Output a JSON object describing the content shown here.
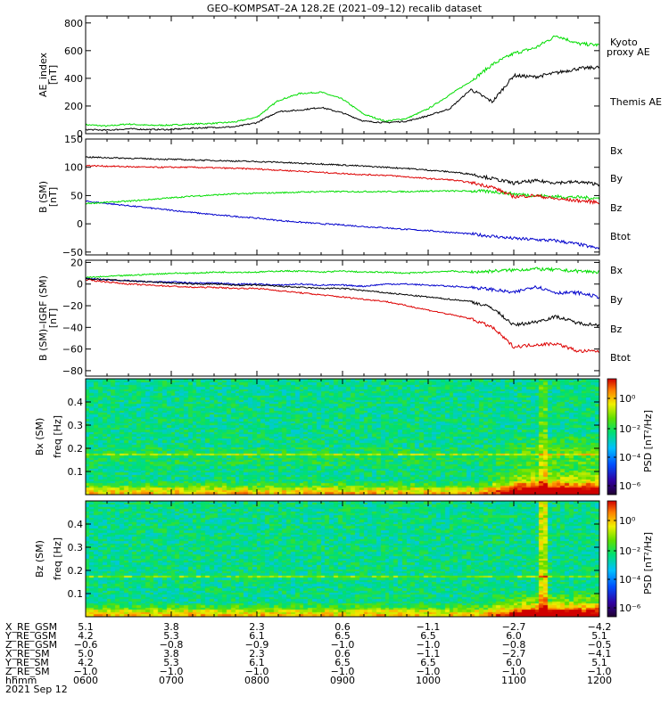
{
  "title": "GEO–KOMPSAT–2A 128.2E (2021–09–12) recalib dataset",
  "chart_data": [
    {
      "type": "line",
      "panel": "ae",
      "ylabel": [
        "AE_index",
        "[nT]"
      ],
      "ylim": [
        0,
        850
      ],
      "yticks": [
        0,
        200,
        400,
        600,
        800
      ],
      "x_hours": [
        6.0,
        6.25,
        6.5,
        6.75,
        7.0,
        7.25,
        7.5,
        7.75,
        8.0,
        8.25,
        8.5,
        8.75,
        9.0,
        9.25,
        9.5,
        9.75,
        10.0,
        10.25,
        10.5,
        10.75,
        11.0,
        11.25,
        11.5,
        11.75,
        12.0
      ],
      "series": [
        {
          "name": "Kyoto proxy AE",
          "color": "#00dd00",
          "values": [
            65,
            55,
            70,
            60,
            62,
            70,
            75,
            85,
            120,
            240,
            290,
            300,
            250,
            140,
            90,
            110,
            180,
            280,
            380,
            500,
            580,
            620,
            710,
            650,
            640
          ]
        },
        {
          "name": "Themis AE",
          "color": "#000000",
          "values": [
            30,
            25,
            35,
            30,
            30,
            40,
            45,
            50,
            80,
            160,
            170,
            190,
            150,
            90,
            80,
            90,
            130,
            180,
            320,
            230,
            420,
            410,
            440,
            470,
            480
          ]
        }
      ]
    },
    {
      "type": "line",
      "panel": "b_sm",
      "ylabel": [
        "B (SM)",
        "[nT]"
      ],
      "ylim": [
        -55,
        150
      ],
      "yticks": [
        -50,
        0,
        50,
        100,
        150
      ],
      "x_hours": [
        6.0,
        6.25,
        6.5,
        6.75,
        7.0,
        7.25,
        7.5,
        7.75,
        8.0,
        8.25,
        8.5,
        8.75,
        9.0,
        9.25,
        9.5,
        9.75,
        10.0,
        10.25,
        10.5,
        10.75,
        11.0,
        11.25,
        11.5,
        11.75,
        12.0
      ],
      "series": [
        {
          "name": "Bx",
          "color": "#0000cc",
          "values": [
            40,
            36,
            32,
            28,
            24,
            20,
            16,
            13,
            10,
            6,
            3,
            0,
            -2,
            -5,
            -7,
            -10,
            -12,
            -15,
            -18,
            -22,
            -26,
            -28,
            -30,
            -36,
            -44
          ]
        },
        {
          "name": "By",
          "color": "#00dd00",
          "values": [
            36,
            38,
            40,
            43,
            46,
            49,
            51,
            53,
            54,
            55,
            56,
            57,
            57,
            57,
            57,
            57,
            58,
            58,
            58,
            57,
            53,
            50,
            48,
            47,
            45
          ]
        },
        {
          "name": "Bz",
          "color": "#dd0000",
          "values": [
            103,
            102,
            101,
            100,
            100,
            100,
            99,
            98,
            97,
            95,
            93,
            91,
            89,
            87,
            86,
            83,
            80,
            78,
            73,
            65,
            48,
            50,
            44,
            41,
            38
          ]
        },
        {
          "name": "Btot",
          "color": "#000000",
          "values": [
            118,
            117,
            116,
            115,
            114,
            113,
            112,
            111,
            110,
            109,
            107,
            106,
            104,
            102,
            100,
            98,
            95,
            92,
            88,
            80,
            72,
            76,
            73,
            74,
            70
          ]
        }
      ]
    },
    {
      "type": "line",
      "panel": "b_minus_igrf",
      "ylabel": [
        "B (SM)–IGRF (SM)",
        "[nT]"
      ],
      "ylim": [
        -85,
        22
      ],
      "yticks": [
        -80,
        -60,
        -40,
        -20,
        0,
        20
      ],
      "x_hours": [
        6.0,
        6.25,
        6.5,
        6.75,
        7.0,
        7.25,
        7.5,
        7.75,
        8.0,
        8.25,
        8.5,
        8.75,
        9.0,
        9.25,
        9.5,
        9.75,
        10.0,
        10.25,
        10.5,
        10.75,
        11.0,
        11.25,
        11.5,
        11.75,
        12.0
      ],
      "series": [
        {
          "name": "Bx",
          "color": "#0000cc",
          "values": [
            5,
            4,
            3,
            2,
            2,
            1,
            1,
            0,
            0,
            -1,
            0,
            -1,
            -1,
            -2,
            0,
            0,
            -1,
            -2,
            -3,
            -5,
            -8,
            -2,
            -8,
            -8,
            -12
          ]
        },
        {
          "name": "By",
          "color": "#00dd00",
          "values": [
            6,
            7,
            8,
            9,
            10,
            10,
            11,
            11,
            11,
            12,
            12,
            11,
            12,
            11,
            11,
            10,
            11,
            12,
            11,
            12,
            13,
            14,
            13,
            12,
            11
          ]
        },
        {
          "name": "Bz",
          "color": "#dd0000",
          "values": [
            4,
            2,
            0,
            -1,
            -2,
            -3,
            -3,
            -4,
            -4,
            -6,
            -8,
            -10,
            -12,
            -14,
            -16,
            -20,
            -24,
            -28,
            -32,
            -40,
            -58,
            -56,
            -55,
            -62,
            -62
          ]
        },
        {
          "name": "Btot",
          "color": "#000000",
          "values": [
            5,
            4,
            3,
            2,
            1,
            0,
            0,
            -1,
            -1,
            -2,
            -3,
            -4,
            -4,
            -6,
            -8,
            -10,
            -12,
            -14,
            -16,
            -22,
            -38,
            -35,
            -30,
            -36,
            -38
          ]
        }
      ]
    },
    {
      "type": "heatmap",
      "panel": "bx_spectrogram",
      "ylabel": [
        "Bx (SM)",
        "freq [Hz]"
      ],
      "ylim": [
        0.0,
        0.5
      ],
      "yticks": [
        0.1,
        0.2,
        0.3,
        0.4
      ],
      "colorbar": {
        "label": "PSD [nT²/Hz]",
        "ticks": [
          "10⁰",
          "10⁻²",
          "10⁻⁴",
          "10⁻⁶"
        ]
      },
      "notes": "Noise floor in green/cyan; persistent band near 0.17 Hz; elevated power (yellow-red) at low frequencies, strongest after 1045 hhmm."
    },
    {
      "type": "heatmap",
      "panel": "bz_spectrogram",
      "ylabel": [
        "Bz (SM)",
        "freq [Hz]"
      ],
      "ylim": [
        0.0,
        0.5
      ],
      "yticks": [
        0.1,
        0.2,
        0.3,
        0.4
      ],
      "colorbar": {
        "label": "PSD [nT²/Hz]",
        "ticks": [
          "10⁰",
          "10⁻²",
          "10⁻⁴",
          "10⁻⁶"
        ]
      },
      "notes": "Noise floor in green/cyan; persistent band near 0.17 Hz; broadband yellow burst near 1120 hhmm."
    }
  ],
  "legends": {
    "ae": [
      {
        "text": "Kyoto",
        "color": "#00dd00"
      },
      {
        "text": "proxy AE",
        "color": "#00dd00"
      },
      {
        "text": "Themis AE",
        "color": "#000000"
      }
    ],
    "b_sm": [
      {
        "text": "Bx",
        "color": "#0000cc"
      },
      {
        "text": "By",
        "color": "#00dd00"
      },
      {
        "text": "Bz",
        "color": "#dd0000"
      },
      {
        "text": "Btot",
        "color": "#000000"
      }
    ],
    "b_minus_igrf": [
      {
        "text": "Bx",
        "color": "#0000cc"
      },
      {
        "text": "By",
        "color": "#00dd00"
      },
      {
        "text": "Bz",
        "color": "#dd0000"
      },
      {
        "text": "Btot",
        "color": "#000000"
      }
    ]
  },
  "ephemeris": {
    "row_labels": [
      "X_RE_GSM",
      "Y_RE_GSM",
      "Z_RE_GSM",
      "X_RE_SM",
      "Y_RE_SM",
      "Z_RE_SM",
      "hhmm"
    ],
    "columns": [
      [
        "5.1",
        "4.2",
        "−0.6",
        "5.0",
        "4.2",
        "−1.0",
        "0600"
      ],
      [
        "3.8",
        "5.3",
        "−0.8",
        "3.8",
        "5.3",
        "−1.0",
        "0700"
      ],
      [
        "2.3",
        "6.1",
        "−0.9",
        "2.3",
        "6.1",
        "−1.0",
        "0800"
      ],
      [
        "0.6",
        "6.5",
        "−1.0",
        "0.6",
        "6.5",
        "−1.0",
        "0900"
      ],
      [
        "−1.1",
        "6.5",
        "−1.0",
        "−1.1",
        "6.5",
        "−1.0",
        "1000"
      ],
      [
        "−2.7",
        "6.0",
        "−0.8",
        "−2.7",
        "6.0",
        "−1.0",
        "1100"
      ],
      [
        "−4.2",
        "5.1",
        "−0.5",
        "−4.1",
        "5.1",
        "−1.0",
        "1200"
      ]
    ],
    "date": "2021 Sep 12"
  }
}
